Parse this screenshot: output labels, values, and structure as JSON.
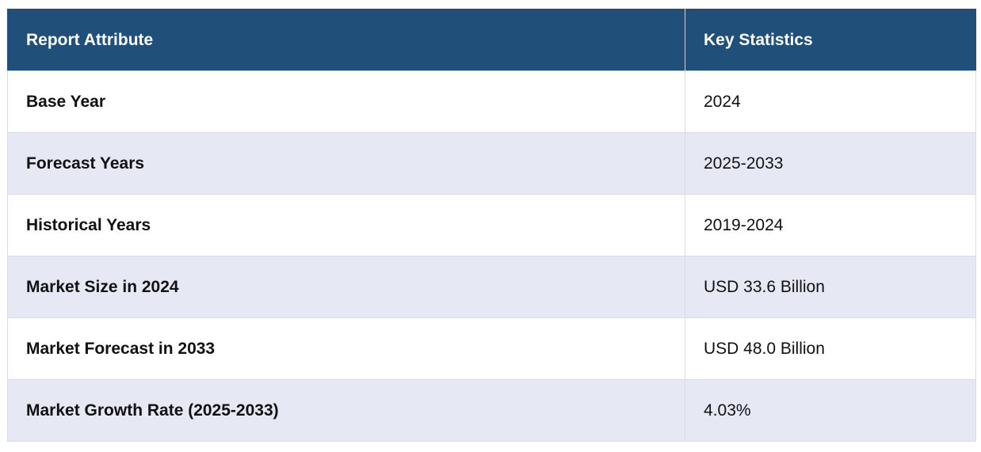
{
  "table": {
    "headers": [
      "Report Attribute",
      "Key Statistics"
    ],
    "rows": [
      {
        "attribute": "Base Year",
        "value": "2024"
      },
      {
        "attribute": "Forecast Years",
        "value": "2025-2033"
      },
      {
        "attribute": "Historical Years",
        "value": "2019-2024"
      },
      {
        "attribute": "Market Size in 2024",
        "value": "USD 33.6 Billion"
      },
      {
        "attribute": "Market Forecast in 2033",
        "value": "USD 48.0 Billion"
      },
      {
        "attribute": "Market Growth Rate (2025-2033)",
        "value": "4.03%"
      }
    ]
  },
  "colors": {
    "header_bg": "#204f7a",
    "header_text": "#ffffff",
    "row_alt_bg": "#e6e9f4",
    "row_bg": "#ffffff"
  }
}
